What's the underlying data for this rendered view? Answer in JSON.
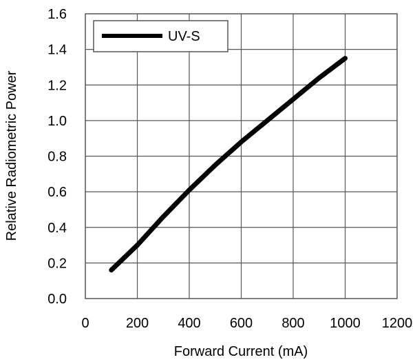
{
  "chart_data": {
    "type": "line",
    "title": "",
    "xlabel": "Forward Current (mA)",
    "ylabel": "Relative Radiometric Power",
    "xlim": [
      0,
      1200
    ],
    "ylim": [
      0.0,
      1.6
    ],
    "x_ticks": [
      "0",
      "200",
      "400",
      "600",
      "800",
      "1000",
      "1200"
    ],
    "y_ticks": [
      "0.0",
      "0.2",
      "0.4",
      "0.6",
      "0.8",
      "1.0",
      "1.2",
      "1.4",
      "1.6"
    ],
    "grid": true,
    "legend_position": "top-left",
    "series": [
      {
        "name": "UV-S",
        "color": "#000000",
        "x": [
          100,
          200,
          300,
          400,
          500,
          600,
          700,
          800,
          900,
          1000
        ],
        "y": [
          0.16,
          0.3,
          0.46,
          0.61,
          0.75,
          0.88,
          1.0,
          1.12,
          1.24,
          1.35
        ]
      }
    ]
  }
}
